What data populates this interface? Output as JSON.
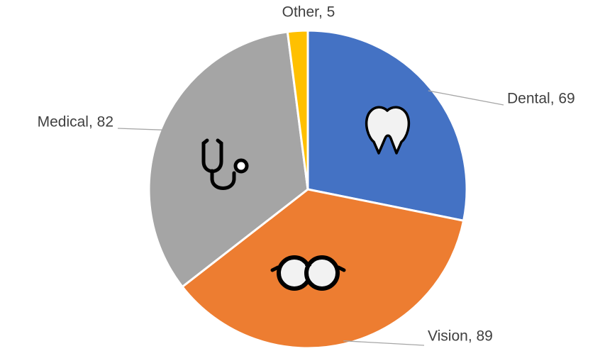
{
  "chart_data": {
    "type": "pie",
    "values": [
      69,
      89,
      82,
      5
    ],
    "value_labels": [
      "Dental, 69",
      "Vision, 89",
      "Medical, 82",
      "Other, 5"
    ],
    "colors": [
      "#4472c4",
      "#ed7d31",
      "#a5a5a5",
      "#ffc000"
    ]
  }
}
